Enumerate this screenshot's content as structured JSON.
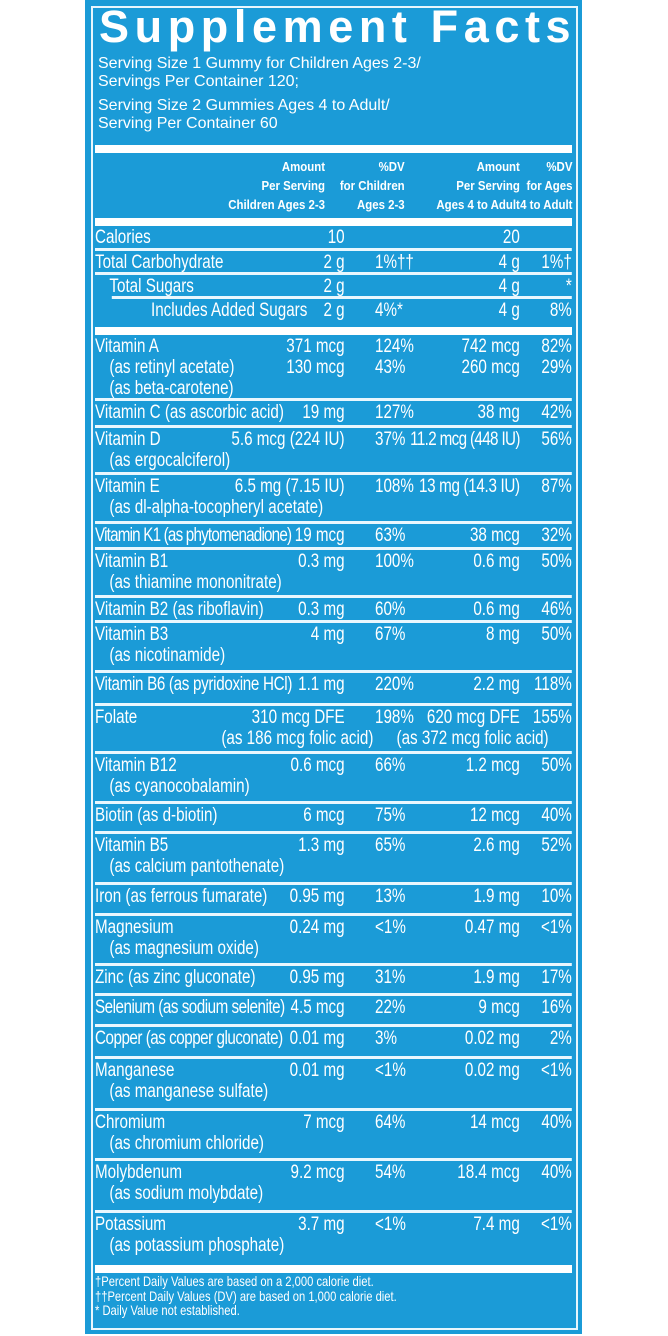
{
  "colors": {
    "panel": "#1b9bd7",
    "text": "#ffffff"
  },
  "title": "Supplement Facts",
  "serving": [
    "Serving Size 1 Gummy for Children Ages 2-3/",
    "Servings Per Container 120;",
    "Serving Size 2 Gummies Ages 4 to Adult/",
    "Serving Per Container 60"
  ],
  "header": {
    "amount_child": [
      "Amount",
      "Per Serving",
      "Children Ages 2-3"
    ],
    "dv_child": [
      "%DV",
      "for Children",
      "Ages 2-3"
    ],
    "amount_adult": [
      "Amount",
      "Per Serving",
      "Ages 4 to Adult"
    ],
    "dv_adult": [
      "%DV",
      "for Ages",
      "4 to Adult"
    ]
  },
  "macros": [
    {
      "label": [
        "Calories"
      ],
      "amount_child": [
        "10"
      ],
      "dv_child": [
        ""
      ],
      "amount_adult": [
        "20"
      ],
      "dv_adult": [
        ""
      ]
    },
    {
      "label": [
        "Total Carbohydrate"
      ],
      "amount_child": [
        "2 g"
      ],
      "dv_child": [
        "1%††"
      ],
      "amount_adult": [
        "4 g"
      ],
      "dv_adult": [
        "1%†"
      ]
    },
    {
      "label": [
        "Total Sugars"
      ],
      "amount_child": [
        "2 g"
      ],
      "dv_child": [
        ""
      ],
      "amount_adult": [
        "4 g"
      ],
      "dv_adult": [
        "*"
      ]
    },
    {
      "label": [
        "Includes  Added Sugars"
      ],
      "amount_child": [
        "2 g"
      ],
      "dv_child": [
        "4%*"
      ],
      "amount_adult": [
        "4 g"
      ],
      "dv_adult": [
        "8%"
      ]
    }
  ],
  "nutrients": [
    {
      "label": [
        "Vitamin A",
        "(as retinyl acetate)",
        "(as beta-carotene)"
      ],
      "amount_child": [
        "",
        "371 mcg",
        "130 mcg"
      ],
      "dv_child": [
        "",
        "124%",
        "43%"
      ],
      "amount_adult": [
        "",
        "742 mcg",
        "260 mcg"
      ],
      "dv_adult": [
        "",
        "82%",
        "29%"
      ]
    },
    {
      "label": [
        "Vitamin C (as ascorbic acid)"
      ],
      "amount_child": [
        "19 mg"
      ],
      "dv_child": [
        "127%"
      ],
      "amount_adult": [
        "38 mg"
      ],
      "dv_adult": [
        "42%"
      ]
    },
    {
      "label": [
        "Vitamin D",
        "(as ergocalciferol)"
      ],
      "amount_child": [
        "5.6 mcg (224 IU)"
      ],
      "dv_child": [
        "37%"
      ],
      "amount_adult": [
        "11.2 mcg (448 IU)"
      ],
      "dv_adult": [
        "56%"
      ]
    },
    {
      "label": [
        "Vitamin E",
        "(as dl-alpha-tocopheryl acetate)"
      ],
      "amount_child": [
        "6.5 mg (7.15 IU)"
      ],
      "dv_child": [
        "108%"
      ],
      "amount_adult": [
        "13 mg (14.3 IU)"
      ],
      "dv_adult": [
        "87%"
      ]
    },
    {
      "label": [
        "Vitamin K1 (as phytomenadione)"
      ],
      "amount_child": [
        "19 mcg"
      ],
      "dv_child": [
        "63%"
      ],
      "amount_adult": [
        "38 mcg"
      ],
      "dv_adult": [
        "32%"
      ]
    },
    {
      "label": [
        "Vitamin B1",
        "(as thiamine mononitrate)"
      ],
      "amount_child": [
        "0.3 mg"
      ],
      "dv_child": [
        "100%"
      ],
      "amount_adult": [
        "0.6 mg"
      ],
      "dv_adult": [
        "50%"
      ]
    },
    {
      "label": [
        "Vitamin B2 (as riboflavin)"
      ],
      "amount_child": [
        "0.3 mg"
      ],
      "dv_child": [
        "60%"
      ],
      "amount_adult": [
        "0.6 mg"
      ],
      "dv_adult": [
        "46%"
      ]
    },
    {
      "label": [
        "Vitamin B3",
        "(as nicotinamide)"
      ],
      "amount_child": [
        "4 mg"
      ],
      "dv_child": [
        "67%"
      ],
      "amount_adult": [
        "8 mg"
      ],
      "dv_adult": [
        "50%"
      ]
    },
    {
      "label": [
        "Vitamin B6 (as pyridoxine HCl)"
      ],
      "amount_child": [
        "1.1 mg"
      ],
      "dv_child": [
        "220%"
      ],
      "amount_adult": [
        "2.2 mg"
      ],
      "dv_adult": [
        "118%"
      ]
    },
    {
      "label": [
        "Folate"
      ],
      "amount_child": [
        "310 mcg DFE",
        "(as 186 mcg folic acid)"
      ],
      "dv_child": [
        "198%"
      ],
      "amount_adult": [
        "620 mcg DFE",
        "(as 372 mcg folic acid)"
      ],
      "dv_adult": [
        "155%"
      ]
    },
    {
      "label": [
        "Vitamin B12",
        "(as cyanocobalamin)"
      ],
      "amount_child": [
        "0.6 mcg"
      ],
      "dv_child": [
        "66%"
      ],
      "amount_adult": [
        "1.2 mcg"
      ],
      "dv_adult": [
        "50%"
      ]
    },
    {
      "label": [
        "Biotin (as d-biotin)"
      ],
      "amount_child": [
        "6 mcg"
      ],
      "dv_child": [
        "75%"
      ],
      "amount_adult": [
        "12 mcg"
      ],
      "dv_adult": [
        "40%"
      ]
    },
    {
      "label": [
        "Vitamin B5",
        "(as calcium pantothenate)"
      ],
      "amount_child": [
        "1.3 mg"
      ],
      "dv_child": [
        "65%"
      ],
      "amount_adult": [
        "2.6 mg"
      ],
      "dv_adult": [
        "52%"
      ]
    },
    {
      "label": [
        "Iron (as ferrous fumarate)"
      ],
      "amount_child": [
        "0.95 mg"
      ],
      "dv_child": [
        "13%"
      ],
      "amount_adult": [
        "1.9 mg"
      ],
      "dv_adult": [
        "10%"
      ]
    },
    {
      "label": [
        "Magnesium",
        "(as magnesium oxide)"
      ],
      "amount_child": [
        "0.24 mg"
      ],
      "dv_child": [
        "<1%"
      ],
      "amount_adult": [
        "0.47 mg"
      ],
      "dv_adult": [
        "<1%"
      ]
    },
    {
      "label": [
        "Zinc (as zinc gluconate)"
      ],
      "amount_child": [
        "0.95 mg"
      ],
      "dv_child": [
        "31%"
      ],
      "amount_adult": [
        "1.9 mg"
      ],
      "dv_adult": [
        "17%"
      ]
    },
    {
      "label": [
        "Selenium (as sodium selenite)"
      ],
      "amount_child": [
        "4.5 mcg"
      ],
      "dv_child": [
        "22%"
      ],
      "amount_adult": [
        "9 mcg"
      ],
      "dv_adult": [
        "16%"
      ]
    },
    {
      "label": [
        "Copper (as copper gluconate)"
      ],
      "amount_child": [
        "0.01 mg"
      ],
      "dv_child": [
        "3%"
      ],
      "amount_adult": [
        "0.02 mg"
      ],
      "dv_adult": [
        "2%"
      ]
    },
    {
      "label": [
        "Manganese",
        "(as manganese sulfate)"
      ],
      "amount_child": [
        "0.01 mg"
      ],
      "dv_child": [
        "<1%"
      ],
      "amount_adult": [
        "0.02 mg"
      ],
      "dv_adult": [
        "<1%"
      ]
    },
    {
      "label": [
        "Chromium",
        "(as chromium chloride)"
      ],
      "amount_child": [
        "7 mcg"
      ],
      "dv_child": [
        "64%"
      ],
      "amount_adult": [
        "14 mcg"
      ],
      "dv_adult": [
        "40%"
      ]
    },
    {
      "label": [
        "Molybdenum",
        "(as sodium molybdate)"
      ],
      "amount_child": [
        "9.2 mcg"
      ],
      "dv_child": [
        "54%"
      ],
      "amount_adult": [
        "18.4 mcg"
      ],
      "dv_adult": [
        "40%"
      ]
    },
    {
      "label": [
        "Potassium",
        "(as potassium phosphate)"
      ],
      "amount_child": [
        "3.7 mg"
      ],
      "dv_child": [
        "<1%"
      ],
      "amount_adult": [
        "7.4 mg"
      ],
      "dv_adult": [
        "<1%"
      ]
    }
  ],
  "footnotes": [
    "†Percent Daily Values are based on a 2,000 calorie diet.",
    "††Percent Daily Values (DV) are based on 1,000 calorie diet.",
    "* Daily Value not established."
  ]
}
